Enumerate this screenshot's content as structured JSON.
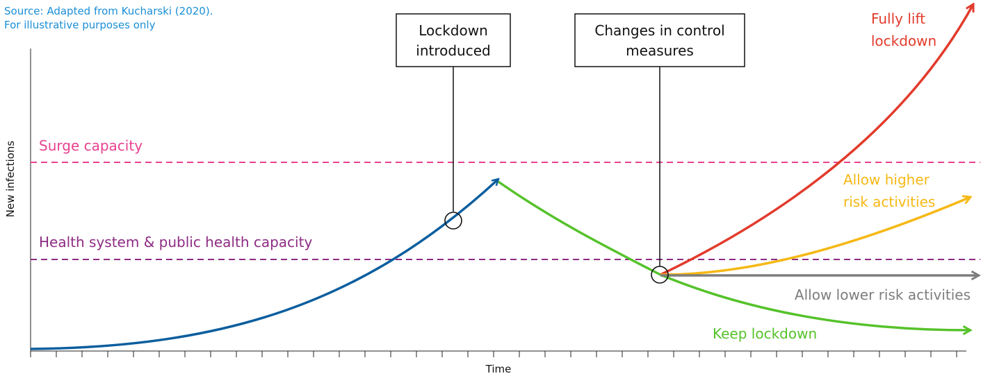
{
  "source": {
    "line1": "Source: Adapted from Kucharski (2020).",
    "line2": "For illustrative purposes only"
  },
  "axes": {
    "ylabel": "New infections",
    "xlabel": "Time"
  },
  "thresholds": {
    "surge": "Surge capacity",
    "health": "Health system & public health capacity"
  },
  "callouts": {
    "lockdown": [
      "Lockdown",
      "introduced"
    ],
    "changes": [
      "Changes in control",
      "measures"
    ]
  },
  "scenarios": {
    "fully_lift": [
      "Fully lift",
      "lockdown"
    ],
    "higher_risk": [
      "Allow higher",
      "risk activities"
    ],
    "lower_risk": "Allow lower risk activities",
    "keep": "Keep lockdown"
  },
  "colors": {
    "source": "#1a8fd6",
    "surge": "#e8418f",
    "health": "#8e2b83",
    "rising": "#0b5e9e",
    "keep": "#55c22a",
    "fully_lift": "#e23b2c",
    "higher_risk": "#f5b815",
    "lower_risk": "#7d7d7d"
  }
}
